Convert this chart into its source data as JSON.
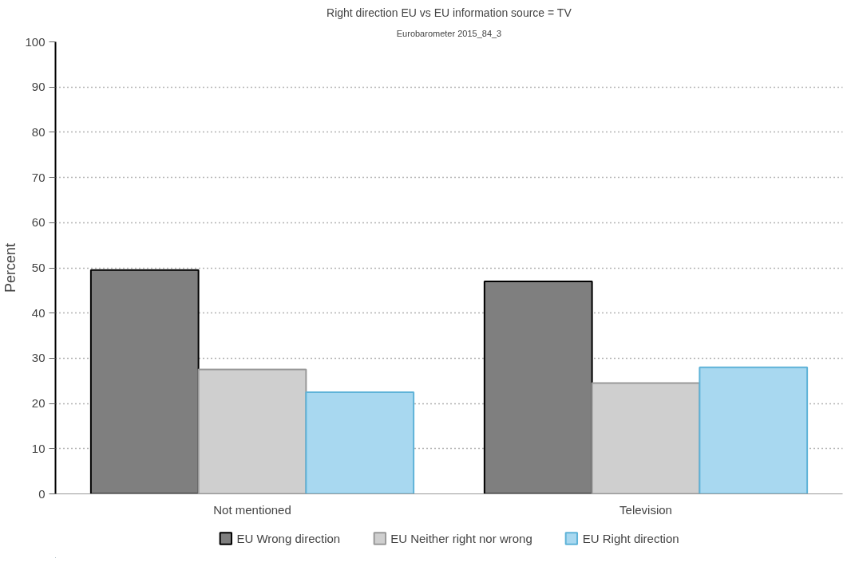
{
  "chart_data": {
    "type": "bar",
    "title": "Right direction EU vs EU information source = TV",
    "subtitle": "Eurobarometer 2015_84_3",
    "ylabel": "Percent",
    "categories": [
      "Not mentioned",
      "Television"
    ],
    "series": [
      {
        "name": "EU Wrong direction",
        "color": "#7f7f7f",
        "values": [
          49.5,
          47.0
        ]
      },
      {
        "name": "EU Neither right nor wrong",
        "color": "#cfcfcf",
        "values": [
          27.5,
          24.5
        ]
      },
      {
        "name": "EU Right direction",
        "color": "#a8d8f0",
        "values": [
          22.5,
          28.0
        ]
      }
    ],
    "ylim": [
      0,
      100
    ],
    "yticks": [
      0,
      10,
      20,
      30,
      40,
      50,
      60,
      70,
      80,
      90,
      100
    ],
    "grid": "y",
    "legend": "bottom"
  }
}
